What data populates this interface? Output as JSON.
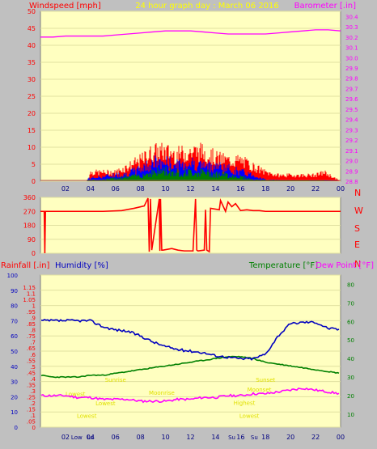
{
  "header": {
    "left_label": "Windspeed [mph]",
    "title": "24 hour graph day : March 06 2016",
    "right_label": "Barometer [.in]"
  },
  "wind_dir_letters": [
    "N",
    "W",
    "S",
    "E",
    "N"
  ],
  "bottom_header": {
    "rainfall_label": "Rainfall [.in]",
    "humidity_label": "Humidity [%]",
    "temperature_label": "Temperature [°F]",
    "dewpoint_label": "Dew Point [°F]"
  },
  "annotations": [
    {
      "text": "Sunrise",
      "x": 6.0,
      "y": 27.5
    },
    {
      "text": "Sunset",
      "x": 18.0,
      "y": 27.5
    },
    {
      "text": "Moonrise",
      "x": 9.7,
      "y": 20.5
    },
    {
      "text": "Moonset",
      "x": 17.5,
      "y": 22.2
    },
    {
      "text": "Lowest",
      "x": 2.8,
      "y": 19.8
    },
    {
      "text": "Lowest",
      "x": 5.2,
      "y": 14.8
    },
    {
      "text": "Highest",
      "x": 16.3,
      "y": 15.0
    },
    {
      "text": "Lowest",
      "x": 3.7,
      "y": 8.0
    },
    {
      "text": "Lowest",
      "x": 16.7,
      "y": 8.0
    }
  ],
  "bottom_tick_notes": [
    {
      "text": "Low",
      "x": 2.9
    },
    {
      "text": "Lo",
      "x": 4.0
    },
    {
      "text": "Su",
      "x": 15.3
    },
    {
      "text": "Su",
      "x": 17.1
    }
  ],
  "colors": {
    "plot_bg": "#ffffc0",
    "frame": "#c0c0c0",
    "wind_gust": "#ff0000",
    "wind_avg": "#0000ff",
    "wind_low": "#008000",
    "barometer": "#ff00ff",
    "wind_dir": "#ff0000",
    "humidity": "#0000c0",
    "temperature": "#008000",
    "dewpoint": "#ff00ff",
    "annotation": "#e0e000"
  },
  "chart_data": [
    {
      "type": "line",
      "title": "24 hour graph day : March 06 2016",
      "xlabel": "",
      "x_ticks": [
        "02",
        "04",
        "06",
        "08",
        "10",
        "12",
        "14",
        "16",
        "18",
        "20",
        "22",
        "00"
      ],
      "xlim": [
        0,
        24
      ],
      "y_left_label": "Windspeed [mph]",
      "y_left_ticks": [
        0,
        5,
        10,
        15,
        20,
        25,
        30,
        35,
        40,
        45,
        50
      ],
      "ylim_left": [
        0,
        50
      ],
      "y_right_label": "Barometer [.in]",
      "y_right_ticks": [
        28.8,
        28.9,
        29.0,
        29.1,
        29.2,
        29.3,
        29.4,
        29.5,
        29.6,
        29.7,
        29.8,
        29.9,
        30.0,
        30.1,
        30.2,
        30.3,
        30.4
      ],
      "ylim_right": [
        28.8,
        30.45
      ],
      "series": [
        {
          "name": "Barometer",
          "axis": "right",
          "x": [
            0,
            1,
            2,
            3,
            4,
            5,
            6,
            7,
            8,
            9,
            10,
            11,
            12,
            13,
            14,
            15,
            16,
            17,
            18,
            19,
            20,
            21,
            22,
            23,
            24
          ],
          "values": [
            30.2,
            30.2,
            30.21,
            30.21,
            30.21,
            30.21,
            30.22,
            30.23,
            30.24,
            30.25,
            30.26,
            30.26,
            30.26,
            30.25,
            30.24,
            30.23,
            30.23,
            30.23,
            30.23,
            30.24,
            30.25,
            30.26,
            30.27,
            30.27,
            30.26
          ]
        },
        {
          "name": "Wind gust",
          "axis": "left",
          "x": [
            0,
            3.7,
            4,
            5,
            6,
            7,
            8,
            9,
            10,
            11,
            12,
            13,
            14,
            15,
            16,
            17,
            18,
            19,
            20,
            21,
            22,
            22.7,
            24
          ],
          "values": [
            0,
            0,
            3,
            3,
            3,
            5,
            7,
            10,
            10,
            9,
            10,
            10,
            8,
            7,
            7,
            5,
            3,
            2,
            2,
            2,
            2,
            3,
            0
          ]
        },
        {
          "name": "Wind average",
          "axis": "left",
          "x": [
            0,
            4,
            5,
            6,
            7,
            8,
            9,
            10,
            11,
            12,
            13,
            14,
            15,
            16,
            17,
            18,
            24
          ],
          "values": [
            0,
            1,
            1.5,
            2,
            2.5,
            4,
            6,
            6,
            5,
            6,
            5,
            5,
            4,
            3,
            2,
            0.5,
            0
          ]
        },
        {
          "name": "Wind low",
          "axis": "left",
          "x": [
            0,
            5,
            6,
            7,
            8,
            9,
            10,
            11,
            12,
            13,
            14,
            15,
            16,
            17,
            24
          ],
          "values": [
            0,
            0.5,
            1,
            1.5,
            2,
            3,
            3.5,
            3,
            3,
            3,
            2.5,
            2,
            1.5,
            0.5,
            0
          ]
        }
      ]
    },
    {
      "type": "line",
      "title": "",
      "x_ticks": [
        "02",
        "04",
        "06",
        "08",
        "10",
        "12",
        "14",
        "16",
        "18",
        "20",
        "22",
        "00"
      ],
      "xlim": [
        0,
        24
      ],
      "y_ticks": [
        0,
        90,
        180,
        270,
        360
      ],
      "ylim": [
        0,
        360
      ],
      "right_labels": [
        "N",
        "W",
        "S",
        "E",
        "N"
      ],
      "series": [
        {
          "name": "Wind direction",
          "x": [
            0,
            0.3,
            0.35,
            0.4,
            0.45,
            0.5,
            1.5,
            3.0,
            5.0,
            6.5,
            7.5,
            8.3,
            8.6,
            8.7,
            8.8,
            8.9,
            9.5,
            9.55,
            9.6,
            9.7,
            9.8,
            10.5,
            11,
            11.5,
            12.2,
            12.4,
            12.5,
            12.6,
            13.1,
            13.2,
            13.3,
            13.5,
            13.6,
            14.3,
            14.4,
            14.8,
            15.0,
            15.3,
            15.6,
            16.0,
            16.5,
            17,
            17.5,
            18,
            19,
            20,
            21,
            22,
            23,
            24
          ],
          "values": [
            270,
            270,
            0,
            270,
            270,
            270,
            270,
            270,
            270,
            275,
            290,
            305,
            355,
            10,
            350,
            20,
            350,
            15,
            350,
            20,
            20,
            30,
            20,
            15,
            15,
            350,
            20,
            15,
            20,
            280,
            20,
            10,
            290,
            280,
            340,
            270,
            330,
            300,
            320,
            275,
            280,
            275,
            275,
            270,
            270,
            270,
            270,
            270,
            270,
            270
          ]
        }
      ]
    },
    {
      "type": "line",
      "title": "",
      "x_ticks": [
        "02",
        "04",
        "06",
        "08",
        "10",
        "12",
        "14",
        "16",
        "18",
        "20",
        "22",
        "00"
      ],
      "xlim": [
        0,
        24
      ],
      "y_left_outer_label": "Rainfall [.in]",
      "y_left_outer_ticks": [
        0,
        0.05,
        0.1,
        0.15,
        0.2,
        0.25,
        0.3,
        0.35,
        0.4,
        0.45,
        0.5,
        0.55,
        0.6,
        0.65,
        0.7,
        0.75,
        0.8,
        0.85,
        0.9,
        0.95,
        1,
        1.05,
        1.1,
        1.15
      ],
      "y_left_label": "Humidity [%]",
      "y_left_ticks": [
        0,
        10,
        20,
        30,
        40,
        50,
        60,
        70,
        80,
        90,
        100
      ],
      "ylim_left": [
        0,
        100
      ],
      "y_right_label": "Temperature [°F]",
      "y_right_ticks": [
        10,
        20,
        30,
        40,
        50,
        60,
        70,
        80
      ],
      "ylim_right": [
        3,
        85
      ],
      "series": [
        {
          "name": "Humidity [%]",
          "axis": "left",
          "x": [
            0,
            1,
            2,
            3,
            4,
            5,
            6,
            7,
            8,
            9,
            10,
            11,
            12,
            13,
            14,
            15,
            16,
            17,
            18,
            19,
            20,
            21,
            22,
            23,
            24
          ],
          "values": [
            70,
            70,
            70,
            70,
            70,
            66,
            64,
            63,
            60,
            56,
            53,
            51,
            50,
            49,
            47,
            46,
            45,
            45,
            48,
            60,
            68,
            69,
            69,
            65,
            64
          ]
        },
        {
          "name": "Temperature [°F]",
          "axis": "right",
          "x": [
            0,
            1,
            2,
            3,
            4,
            5,
            6,
            7,
            8,
            9,
            10,
            11,
            12,
            13,
            14,
            15,
            16,
            17,
            18,
            19,
            20,
            21,
            22,
            23,
            24
          ],
          "values": [
            31,
            30,
            30,
            30,
            31,
            31,
            32,
            33,
            34,
            35,
            36,
            37,
            38,
            39,
            40,
            41,
            41,
            40,
            38,
            37,
            36,
            35,
            34,
            33,
            32
          ]
        },
        {
          "name": "Dew Point [°F]",
          "axis": "right",
          "x": [
            0,
            1,
            2,
            3,
            4,
            5,
            6,
            7,
            8,
            9,
            10,
            11,
            12,
            13,
            14,
            15,
            16,
            17,
            18,
            19,
            20,
            21,
            22,
            23,
            24
          ],
          "values": [
            20,
            20,
            20,
            19,
            19,
            18,
            18,
            18,
            17,
            17,
            17,
            18,
            18,
            19,
            19,
            20,
            20,
            21,
            21,
            22,
            23,
            24,
            23,
            22,
            21
          ]
        }
      ]
    }
  ]
}
